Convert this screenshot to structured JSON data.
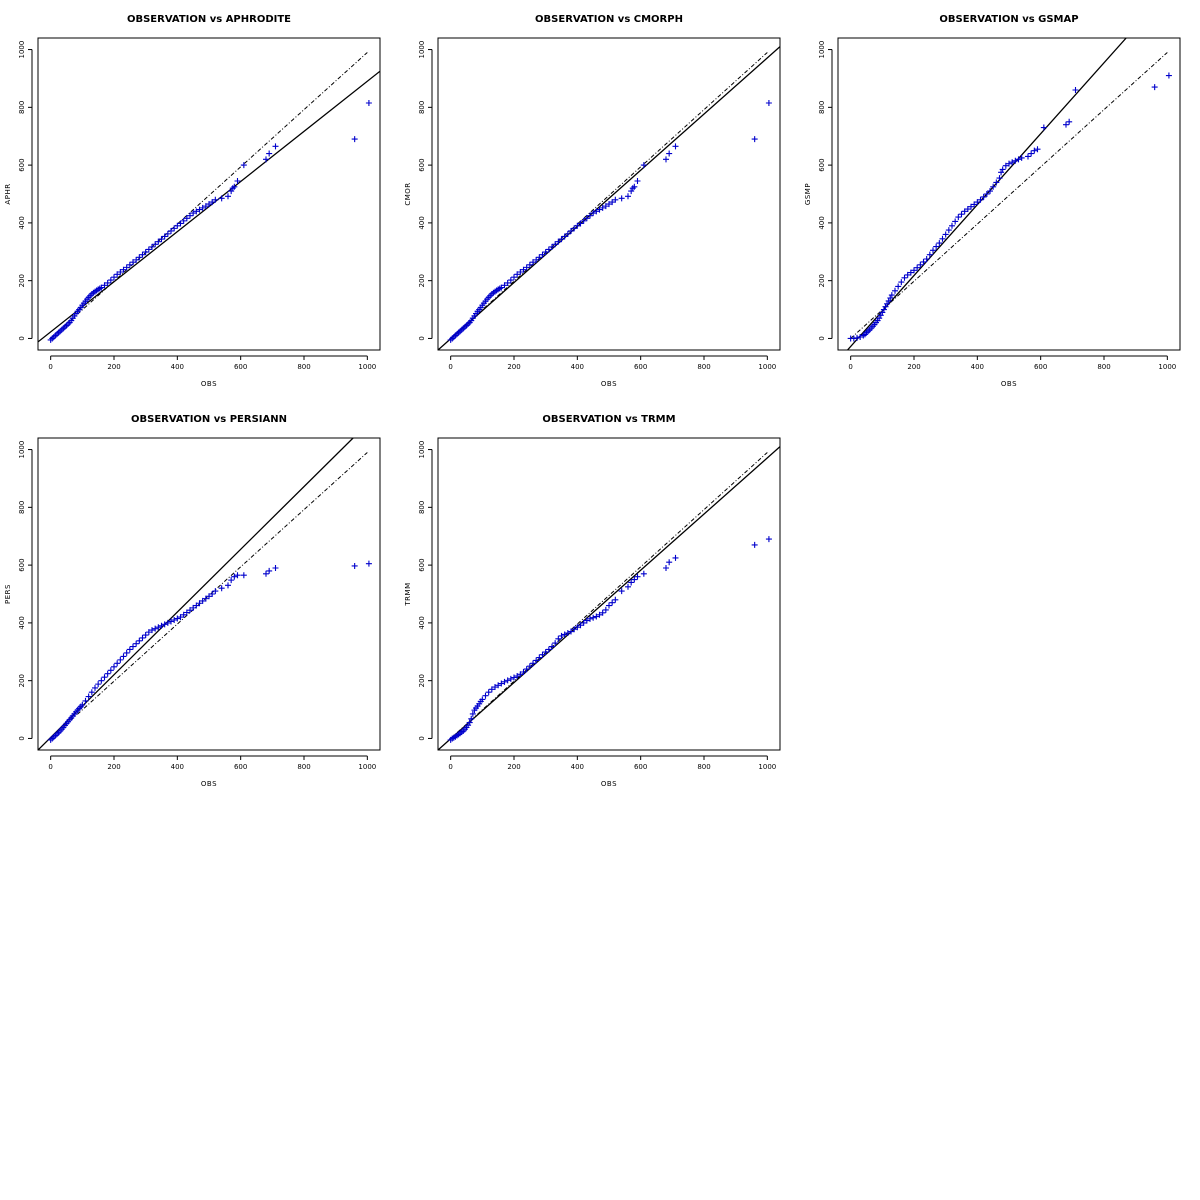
{
  "chart_data": [
    {
      "type": "scatter",
      "title": "OBSERVATION vs APHRODITE",
      "xlabel": "OBS",
      "ylabel": "APHR",
      "xlim": [
        -40,
        1040
      ],
      "ylim": [
        -40,
        1040
      ],
      "xticks": [
        0,
        200,
        400,
        600,
        800,
        1000
      ],
      "yticks": [
        0,
        200,
        400,
        600,
        800,
        1000
      ],
      "grid": false,
      "marker": "+",
      "marker_color": "#0000cc",
      "lines": [
        {
          "kind": "fit",
          "style": "solid",
          "x": [
            -40,
            1040
          ],
          "y": [
            -12,
            925
          ]
        },
        {
          "kind": "reference",
          "style": "dotdash",
          "x": [
            0,
            1000
          ],
          "y": [
            0,
            990
          ]
        }
      ],
      "points": {
        "x": [
          0,
          5,
          10,
          15,
          20,
          25,
          30,
          35,
          40,
          45,
          50,
          55,
          60,
          65,
          70,
          75,
          80,
          85,
          90,
          95,
          100,
          105,
          110,
          115,
          120,
          125,
          130,
          135,
          140,
          145,
          150,
          155,
          160,
          170,
          180,
          190,
          200,
          210,
          220,
          230,
          240,
          250,
          260,
          270,
          280,
          290,
          300,
          310,
          320,
          330,
          340,
          350,
          360,
          370,
          380,
          390,
          400,
          410,
          420,
          430,
          440,
          450,
          460,
          470,
          480,
          490,
          500,
          510,
          520,
          540,
          560,
          570,
          575,
          580,
          590,
          610,
          680,
          690,
          710,
          960,
          1005
        ],
        "y": [
          -5,
          0,
          5,
          10,
          15,
          20,
          25,
          30,
          35,
          40,
          45,
          50,
          55,
          62,
          70,
          78,
          86,
          94,
          100,
          107,
          115,
          122,
          129,
          136,
          142,
          148,
          154,
          158,
          162,
          166,
          170,
          173,
          176,
          184,
          192,
          202,
          212,
          222,
          230,
          238,
          246,
          255,
          264,
          272,
          281,
          290,
          299,
          308,
          317,
          326,
          335,
          344,
          353,
          362,
          372,
          381,
          390,
          398,
          407,
          416,
          425,
          434,
          440,
          446,
          452,
          458,
          465,
          472,
          480,
          485,
          492,
          510,
          520,
          525,
          545,
          600,
          620,
          640,
          665,
          690,
          815
        ]
      }
    },
    {
      "type": "scatter",
      "title": "OBSERVATION vs CMORPH",
      "xlabel": "OBS",
      "ylabel": "CMOR",
      "xlim": [
        -40,
        1040
      ],
      "ylim": [
        -40,
        1040
      ],
      "xticks": [
        0,
        200,
        400,
        600,
        800,
        1000
      ],
      "yticks": [
        0,
        200,
        400,
        600,
        800,
        1000
      ],
      "grid": false,
      "marker": "+",
      "marker_color": "#0000cc",
      "lines": [
        {
          "kind": "fit",
          "style": "solid",
          "x": [
            -40,
            1040
          ],
          "y": [
            -40,
            1010
          ]
        },
        {
          "kind": "reference",
          "style": "dotdash",
          "x": [
            0,
            1000
          ],
          "y": [
            0,
            990
          ]
        }
      ],
      "points": {
        "x": [
          0,
          5,
          10,
          15,
          20,
          25,
          30,
          35,
          40,
          45,
          50,
          55,
          60,
          65,
          70,
          75,
          80,
          85,
          90,
          95,
          100,
          105,
          110,
          115,
          120,
          125,
          130,
          135,
          140,
          145,
          150,
          155,
          160,
          170,
          180,
          190,
          200,
          210,
          220,
          230,
          240,
          250,
          260,
          270,
          280,
          290,
          300,
          310,
          320,
          330,
          340,
          350,
          360,
          370,
          380,
          390,
          400,
          410,
          420,
          430,
          440,
          450,
          460,
          470,
          480,
          490,
          500,
          510,
          520,
          540,
          560,
          570,
          575,
          580,
          590,
          610,
          680,
          690,
          710,
          960,
          1005
        ],
        "y": [
          -5,
          0,
          5,
          10,
          15,
          20,
          25,
          30,
          35,
          40,
          45,
          50,
          55,
          62,
          70,
          78,
          86,
          94,
          100,
          107,
          115,
          122,
          129,
          136,
          142,
          148,
          154,
          158,
          162,
          166,
          170,
          173,
          176,
          184,
          192,
          202,
          212,
          222,
          230,
          238,
          246,
          255,
          264,
          272,
          281,
          290,
          299,
          308,
          317,
          326,
          335,
          344,
          353,
          362,
          372,
          381,
          390,
          398,
          407,
          416,
          425,
          434,
          440,
          446,
          452,
          458,
          465,
          472,
          480,
          485,
          492,
          510,
          520,
          525,
          545,
          600,
          620,
          640,
          665,
          690,
          815
        ]
      }
    },
    {
      "type": "scatter",
      "title": "OBSERVATION vs GSMAP",
      "xlabel": "OBS",
      "ylabel": "GSMP",
      "xlim": [
        -40,
        1040
      ],
      "ylim": [
        -40,
        1040
      ],
      "xticks": [
        0,
        200,
        400,
        600,
        800,
        1000
      ],
      "yticks": [
        0,
        200,
        400,
        600,
        800,
        1000
      ],
      "grid": false,
      "marker": "+",
      "marker_color": "#0000cc",
      "lines": [
        {
          "kind": "fit",
          "style": "solid",
          "x": [
            -10,
            870
          ],
          "y": [
            -40,
            1040
          ]
        },
        {
          "kind": "reference",
          "style": "dotdash",
          "x": [
            0,
            1000
          ],
          "y": [
            0,
            990
          ]
        }
      ],
      "points": {
        "x": [
          0,
          10,
          20,
          30,
          40,
          45,
          50,
          55,
          60,
          65,
          70,
          75,
          80,
          85,
          90,
          95,
          100,
          105,
          110,
          115,
          120,
          125,
          130,
          140,
          150,
          160,
          170,
          180,
          190,
          200,
          210,
          220,
          230,
          240,
          250,
          260,
          270,
          280,
          290,
          300,
          310,
          320,
          330,
          340,
          350,
          360,
          370,
          380,
          390,
          400,
          410,
          420,
          430,
          440,
          450,
          460,
          470,
          475,
          480,
          490,
          500,
          510,
          520,
          530,
          540,
          560,
          570,
          580,
          590,
          610,
          680,
          690,
          710,
          960,
          1005
        ],
        "y": [
          0,
          0,
          2,
          5,
          10,
          14,
          20,
          25,
          30,
          36,
          42,
          48,
          55,
          62,
          70,
          80,
          90,
          100,
          110,
          120,
          130,
          140,
          150,
          165,
          180,
          195,
          210,
          220,
          228,
          236,
          245,
          255,
          265,
          275,
          290,
          305,
          318,
          330,
          345,
          360,
          375,
          390,
          405,
          420,
          430,
          440,
          448,
          456,
          464,
          472,
          480,
          490,
          500,
          510,
          525,
          540,
          555,
          575,
          585,
          598,
          605,
          610,
          615,
          620,
          625,
          630,
          640,
          650,
          655,
          730,
          740,
          750,
          860,
          870,
          910
        ]
      }
    },
    {
      "type": "scatter",
      "title": "OBSERVATION vs PERSIANN",
      "xlabel": "OBS",
      "ylabel": "PERS",
      "xlim": [
        -40,
        1040
      ],
      "ylim": [
        -40,
        1040
      ],
      "xticks": [
        0,
        200,
        400,
        600,
        800,
        1000
      ],
      "yticks": [
        0,
        200,
        400,
        600,
        800,
        1000
      ],
      "grid": false,
      "marker": "+",
      "marker_color": "#0000cc",
      "lines": [
        {
          "kind": "fit",
          "style": "solid",
          "x": [
            -40,
            955
          ],
          "y": [
            -40,
            1040
          ]
        },
        {
          "kind": "reference",
          "style": "dotdash",
          "x": [
            0,
            1000
          ],
          "y": [
            0,
            990
          ]
        }
      ],
      "points": {
        "x": [
          0,
          5,
          10,
          15,
          20,
          25,
          30,
          35,
          40,
          45,
          50,
          55,
          60,
          65,
          70,
          75,
          80,
          85,
          90,
          95,
          100,
          110,
          120,
          130,
          140,
          150,
          160,
          170,
          180,
          190,
          200,
          210,
          220,
          230,
          240,
          250,
          260,
          270,
          280,
          290,
          300,
          310,
          320,
          330,
          340,
          350,
          360,
          370,
          380,
          390,
          400,
          410,
          420,
          430,
          440,
          450,
          460,
          470,
          480,
          490,
          500,
          510,
          520,
          540,
          560,
          570,
          580,
          590,
          610,
          680,
          690,
          710,
          960,
          1005
        ],
        "y": [
          -5,
          0,
          5,
          10,
          15,
          20,
          26,
          32,
          38,
          45,
          52,
          58,
          65,
          71,
          78,
          85,
          92,
          98,
          104,
          110,
          116,
          130,
          145,
          160,
          175,
          188,
          200,
          212,
          224,
          236,
          248,
          260,
          272,
          284,
          296,
          308,
          318,
          328,
          338,
          348,
          358,
          368,
          375,
          380,
          385,
          390,
          395,
          400,
          405,
          410,
          415,
          420,
          428,
          436,
          444,
          452,
          460,
          468,
          476,
          484,
          492,
          500,
          510,
          520,
          530,
          548,
          560,
          565,
          565,
          570,
          580,
          590,
          597,
          605
        ]
      }
    },
    {
      "type": "scatter",
      "title": "OBSERVATION vs TRMM",
      "xlabel": "OBS",
      "ylabel": "TRMM",
      "xlim": [
        -40,
        1040
      ],
      "ylim": [
        -40,
        1040
      ],
      "xticks": [
        0,
        200,
        400,
        600,
        800,
        1000
      ],
      "yticks": [
        0,
        200,
        400,
        600,
        800,
        1000
      ],
      "grid": false,
      "marker": "+",
      "marker_color": "#0000cc",
      "lines": [
        {
          "kind": "fit",
          "style": "solid",
          "x": [
            -40,
            1040
          ],
          "y": [
            -40,
            1010
          ]
        },
        {
          "kind": "reference",
          "style": "dotdash",
          "x": [
            0,
            1000
          ],
          "y": [
            0,
            990
          ]
        }
      ],
      "points": {
        "x": [
          0,
          5,
          10,
          15,
          20,
          25,
          30,
          35,
          40,
          45,
          50,
          55,
          60,
          65,
          70,
          75,
          80,
          85,
          90,
          95,
          100,
          110,
          120,
          130,
          140,
          150,
          160,
          170,
          180,
          190,
          200,
          210,
          220,
          230,
          240,
          250,
          260,
          270,
          280,
          290,
          300,
          310,
          320,
          330,
          340,
          350,
          360,
          370,
          380,
          390,
          400,
          410,
          420,
          430,
          440,
          450,
          460,
          470,
          480,
          490,
          500,
          510,
          520,
          540,
          560,
          570,
          580,
          590,
          610,
          680,
          690,
          710,
          960,
          1005
        ],
        "y": [
          -5,
          0,
          3,
          6,
          10,
          14,
          18,
          22,
          26,
          32,
          38,
          46,
          55,
          68,
          85,
          98,
          105,
          112,
          120,
          128,
          135,
          148,
          160,
          170,
          178,
          184,
          190,
          196,
          201,
          206,
          211,
          216,
          222,
          230,
          240,
          250,
          260,
          270,
          280,
          290,
          299,
          308,
          318,
          330,
          345,
          355,
          360,
          365,
          370,
          378,
          385,
          392,
          400,
          408,
          414,
          418,
          422,
          428,
          435,
          445,
          460,
          470,
          480,
          510,
          525,
          540,
          550,
          560,
          570,
          590,
          610,
          625,
          670,
          690
        ]
      }
    }
  ]
}
